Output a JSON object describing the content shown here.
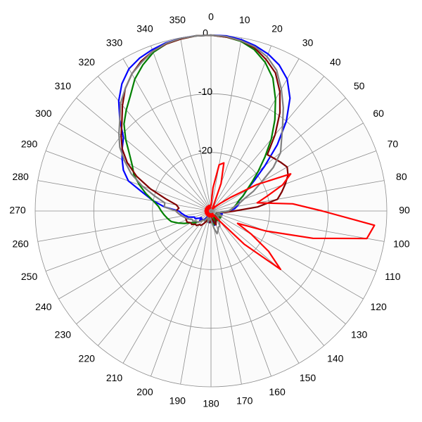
{
  "chart_data": {
    "type": "polar",
    "rlim": [
      -30,
      0
    ],
    "rticks": [
      -20,
      -10,
      0
    ],
    "thetaticks": [
      0,
      10,
      20,
      30,
      40,
      50,
      60,
      70,
      80,
      90,
      100,
      110,
      120,
      130,
      140,
      150,
      160,
      170,
      180,
      190,
      200,
      210,
      220,
      230,
      240,
      250,
      260,
      270,
      280,
      290,
      300,
      310,
      320,
      330,
      340,
      350
    ],
    "theta": [
      0,
      5,
      10,
      15,
      20,
      25,
      30,
      35,
      40,
      45,
      50,
      55,
      60,
      65,
      70,
      75,
      80,
      85,
      90,
      95,
      100,
      105,
      110,
      115,
      120,
      125,
      130,
      135,
      140,
      145,
      150,
      155,
      160,
      165,
      170,
      175,
      180,
      185,
      190,
      195,
      200,
      205,
      210,
      215,
      220,
      225,
      230,
      235,
      240,
      245,
      250,
      255,
      260,
      265,
      270,
      275,
      280,
      285,
      290,
      295,
      300,
      305,
      310,
      315,
      320,
      325,
      330,
      335,
      340,
      345,
      350,
      355
    ],
    "series": [
      {
        "color": "#0000ff",
        "values": [
          0,
          0,
          -0.3,
          -0.8,
          -1.5,
          -2.5,
          -4,
          -6.5,
          -10,
          -14,
          -18,
          -21,
          -23,
          -24,
          -25,
          -25,
          -25.5,
          -26,
          -27,
          -28,
          -28.5,
          -28,
          -28.5,
          -29,
          -28.5,
          -29,
          -28.5,
          -29,
          -28.5,
          -29,
          -28.5,
          -28,
          -28,
          -27.5,
          -28,
          -28.5,
          -29,
          -28.5,
          -28,
          -28.5,
          -29,
          -28.5,
          -29,
          -28.5,
          -28,
          -28,
          -27.5,
          -28,
          -27.5,
          -27,
          -27,
          -26,
          -25.5,
          -25,
          -24.5,
          -22,
          -20,
          -18,
          -15,
          -13.5,
          -12.5,
          -11.5,
          -10.5,
          -8,
          -5.5,
          -3.5,
          -2,
          -1.2,
          -0.7,
          -0.3,
          -0.1,
          0
        ]
      },
      {
        "color": "#008000",
        "values": [
          0,
          -0.2,
          -0.6,
          -1.5,
          -3,
          -5,
          -8,
          -11,
          -14,
          -17,
          -19.5,
          -21.5,
          -23,
          -24,
          -25,
          -25.5,
          -26,
          -26.5,
          -27,
          -28,
          -28.5,
          -29,
          -28.5,
          -29,
          -28.5,
          -28,
          -28.5,
          -29,
          -28.5,
          -28,
          -28.5,
          -29,
          -28.5,
          -28,
          -27.5,
          -28,
          -28.5,
          -29,
          -28.5,
          -28,
          -28.5,
          -29,
          -28.5,
          -28,
          -28,
          -27.5,
          -27,
          -26.5,
          -26,
          -25,
          -24,
          -23,
          -22.5,
          -22,
          -21.5,
          -21,
          -20,
          -18.5,
          -17,
          -15.5,
          -14.5,
          -13,
          -11,
          -9,
          -7.5,
          -6,
          -4,
          -2.5,
          -1.2,
          -0.5,
          -0.2,
          0
        ]
      },
      {
        "color": "#800000",
        "values": [
          0,
          -0.2,
          -0.5,
          -1.2,
          -2.5,
          -4,
          -6.5,
          -9.5,
          -13,
          -16.4,
          -16,
          -15.5,
          -15,
          -15.5,
          -16.5,
          -17.5,
          -18.5,
          -22,
          -26,
          -27.5,
          -28.5,
          -29,
          -28.5,
          -28,
          -28.5,
          -29,
          -28.5,
          -28,
          -28.5,
          -29,
          -28.5,
          -28,
          -27.5,
          -28,
          -28.5,
          -29,
          -28.5,
          -28,
          -28.5,
          -29,
          -28.5,
          -28,
          -27.5,
          -27,
          -27,
          -26.5,
          -26.5,
          -26,
          -26,
          -25.5,
          -25.5,
          -25.5,
          -25,
          -24.5,
          -24,
          -24.5,
          -24,
          -22,
          -19,
          -16,
          -13.5,
          -11.5,
          -10,
          -8.5,
          -6.5,
          -4.5,
          -3,
          -1.8,
          -1,
          -0.5,
          -0.2,
          0
        ]
      },
      {
        "color": "#808080",
        "values": [
          0,
          -0.1,
          -0.5,
          -1,
          -2,
          -3.5,
          -6,
          -8.5,
          -11,
          -13,
          -14.5,
          -17,
          -20,
          -22,
          -24,
          -25,
          -26,
          -26.5,
          -27,
          -28,
          -28.5,
          -29,
          -28.5,
          -28,
          -28.5,
          -29,
          -28.5,
          -28,
          -28,
          -27.5,
          -27,
          -27,
          -26.5,
          -26,
          -27,
          -28,
          -28.5,
          -29,
          -28.5,
          -28,
          -28.5,
          -29,
          -28.5,
          -28,
          -28,
          -27.5,
          -27,
          -27,
          -26.5,
          -26.5,
          -26,
          -25.5,
          -25,
          -24.5,
          -24,
          -22,
          -22,
          -20,
          -17.5,
          -15,
          -13,
          -11,
          -9.5,
          -8,
          -6,
          -4.5,
          -3,
          -2,
          -1,
          -0.4,
          -0.1,
          0
        ]
      },
      {
        "color": "#ff0000",
        "values": [
          -29,
          -26,
          -22,
          -21.5,
          -25,
          -29,
          -29.5,
          -29,
          -29.5,
          -29,
          -28,
          -26,
          -21,
          -15,
          -17,
          -20,
          -22,
          -16,
          -11,
          -2,
          -3,
          -12,
          -20,
          -25,
          -22,
          -18,
          -14.5,
          -22,
          -28,
          -29,
          -29.5,
          -29,
          -29.5,
          -29,
          -29.5,
          -29,
          -29.5,
          -29,
          -29.5,
          -29,
          -29.5,
          -29,
          -29.5,
          -29,
          -29.5,
          -29,
          -29.5,
          -29,
          -29.5,
          -29,
          -29.5,
          -29,
          -29.5,
          -29,
          -29.5,
          -29,
          -29.5,
          -29,
          -29.5,
          -29,
          -29.5,
          -29,
          -29.5,
          -29,
          -29.5,
          -29,
          -29.5,
          -29,
          -29.5,
          -29,
          -29.5,
          -29
        ]
      }
    ]
  }
}
